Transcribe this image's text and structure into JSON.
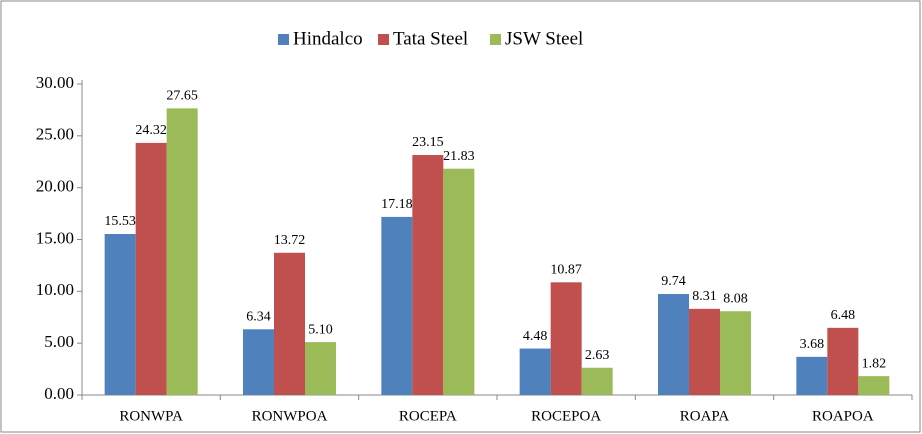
{
  "chart_data": {
    "type": "bar",
    "categories": [
      "RONWPA",
      "RONWPOA",
      "ROCEPA",
      "ROCEPOA",
      "ROAPA",
      "ROAPOA"
    ],
    "series": [
      {
        "name": "Hindalco",
        "color": "#4f81bd",
        "values": [
          15.53,
          6.34,
          17.18,
          4.48,
          9.74,
          3.68
        ],
        "value_labels": [
          "15.53",
          "6.34",
          "17.18",
          "4.48",
          "9.74",
          "3.68"
        ]
      },
      {
        "name": "Tata Steel",
        "color": "#c0504d",
        "values": [
          24.32,
          13.72,
          23.15,
          10.87,
          8.31,
          6.48
        ],
        "value_labels": [
          "24.32",
          "13.72",
          "23.15",
          "10.87",
          "8.31",
          "6.48"
        ]
      },
      {
        "name": "JSW Steel",
        "color": "#9bbb59",
        "values": [
          27.65,
          5.1,
          21.83,
          2.63,
          8.08,
          1.82
        ],
        "value_labels": [
          "27.65",
          "5.10",
          "21.83",
          "2.63",
          "8.08",
          "1.82"
        ]
      }
    ],
    "ylim": [
      0,
      30
    ],
    "yticks": [
      {
        "value": 0,
        "label": "0.00"
      },
      {
        "value": 5,
        "label": "5.00"
      },
      {
        "value": 10,
        "label": "10.00"
      },
      {
        "value": 15,
        "label": "15.00"
      },
      {
        "value": 20,
        "label": "20.00"
      },
      {
        "value": 25,
        "label": "25.00"
      },
      {
        "value": 30,
        "label": "30.00"
      }
    ],
    "grid": false,
    "legend": "top"
  }
}
